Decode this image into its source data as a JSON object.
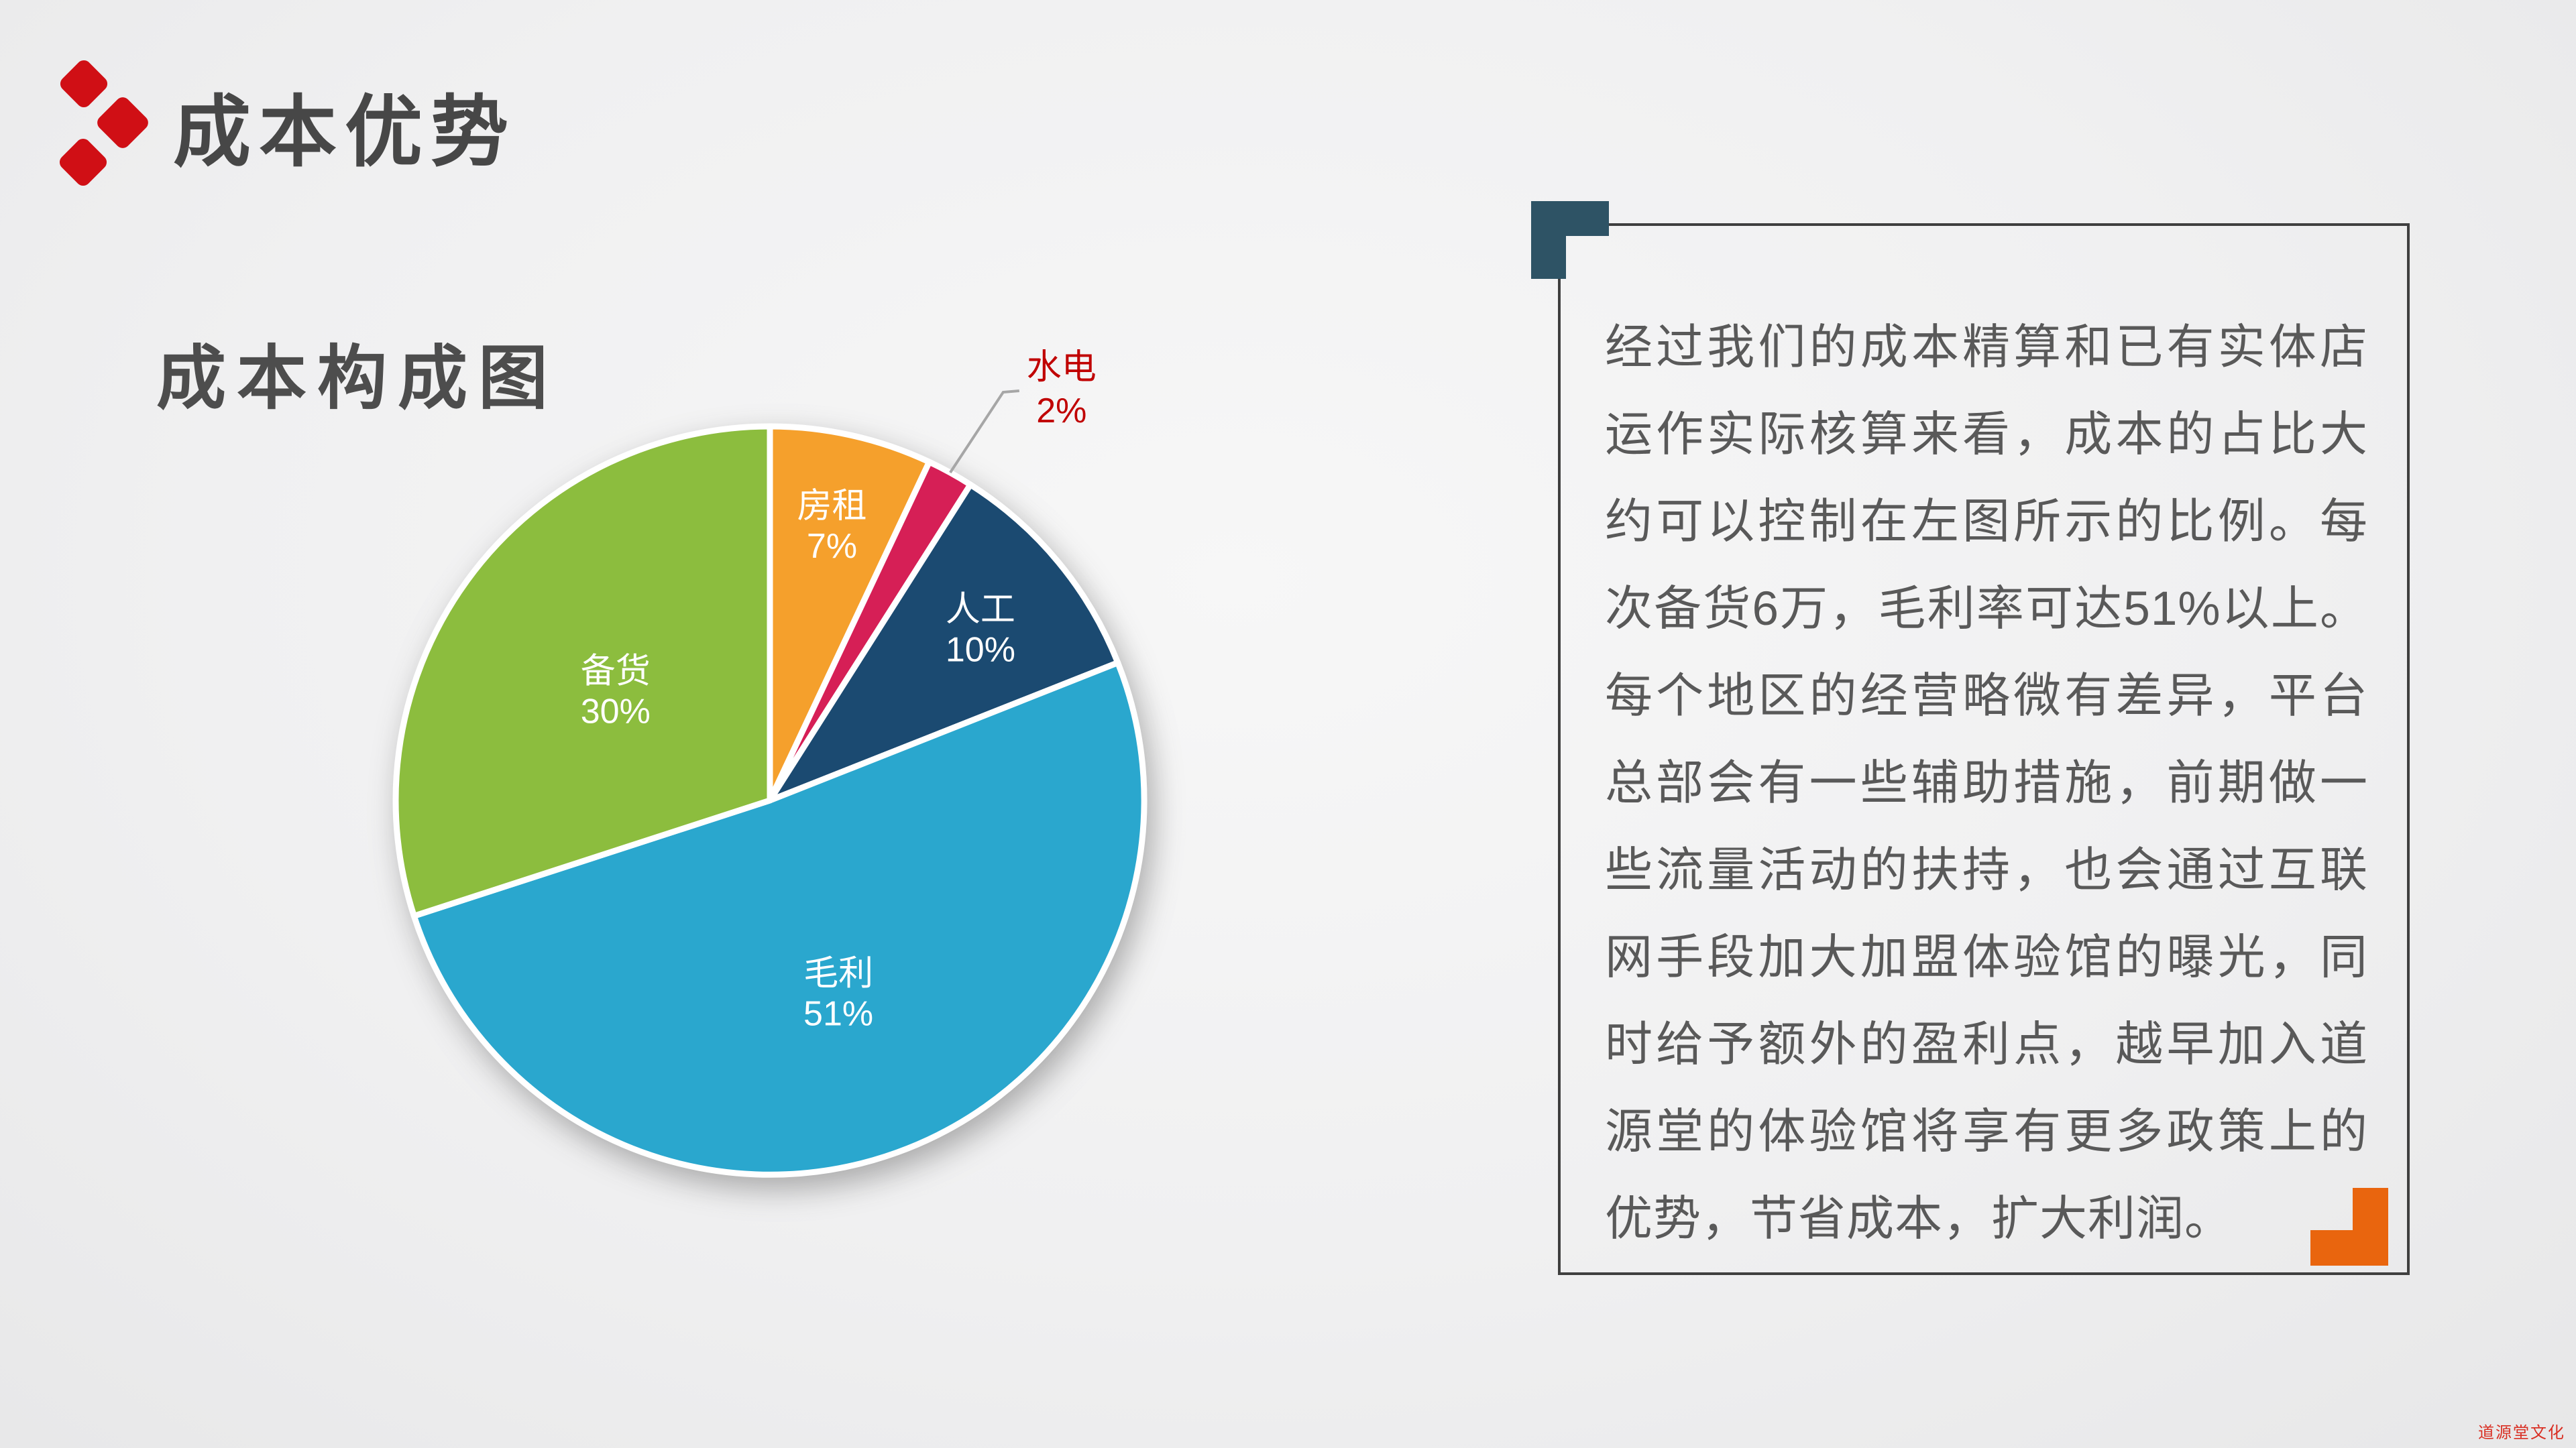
{
  "slide": {
    "title": "成本优势",
    "watermark": "道源堂文化"
  },
  "pie_section": {
    "heading": "成本构成图"
  },
  "chart_data": {
    "type": "pie",
    "title": "成本构成图",
    "unit": "%",
    "start_angle_deg": 0,
    "direction": "clockwise",
    "legend_position": "none",
    "categories": [
      "房租",
      "水电",
      "人工",
      "毛利",
      "备货"
    ],
    "values": [
      7,
      2,
      10,
      51,
      30
    ],
    "slices": [
      {
        "label": "房租",
        "value": 7,
        "display": "7%",
        "color": "#F5A02C",
        "label_inside": true,
        "label_r": 0.76
      },
      {
        "label": "水电",
        "value": 2,
        "display": "2%",
        "color": "#D61F56",
        "label_inside": false,
        "label_r": 1.0
      },
      {
        "label": "人工",
        "value": 10,
        "display": "10%",
        "color": "#1B4A71",
        "label_inside": true,
        "label_r": 0.73
      },
      {
        "label": "毛利",
        "value": 51,
        "display": "51%",
        "color": "#2AA7CE",
        "label_inside": true,
        "label_r": 0.54
      },
      {
        "label": "备货",
        "value": 30,
        "display": "30%",
        "color": "#8CBD3E",
        "label_inside": true,
        "label_r": 0.51
      }
    ]
  },
  "panel": {
    "text": "经过我们的成本精算和已有实体店运作实际核算来看，成本的占比大约可以控制在左图所示的比例。每次备货6万，毛利率可达51%以上。每个地区的经营略微有差异，平台总部会有一些辅助措施，前期做一些流量活动的扶持，也会通过互联网手段加大加盟体验馆的曝光，同时给予额外的盈利点，越早加入道源堂的体验馆将享有更多政策上的优势，节省成本，扩大利润。"
  },
  "colors": {
    "accent_red": "#D00F15",
    "title_text": "#474747",
    "heading_text": "#4D4D4D",
    "body_text": "#595959",
    "panel_border": "#3F3F3F",
    "corner_teal": "#2E5365",
    "corner_orange": "#E9650E",
    "callout_text": "#C00000",
    "leader_line": "#A6A6A6",
    "slice_label": "#FFFFFF",
    "watermark_red": "#D92F23"
  }
}
